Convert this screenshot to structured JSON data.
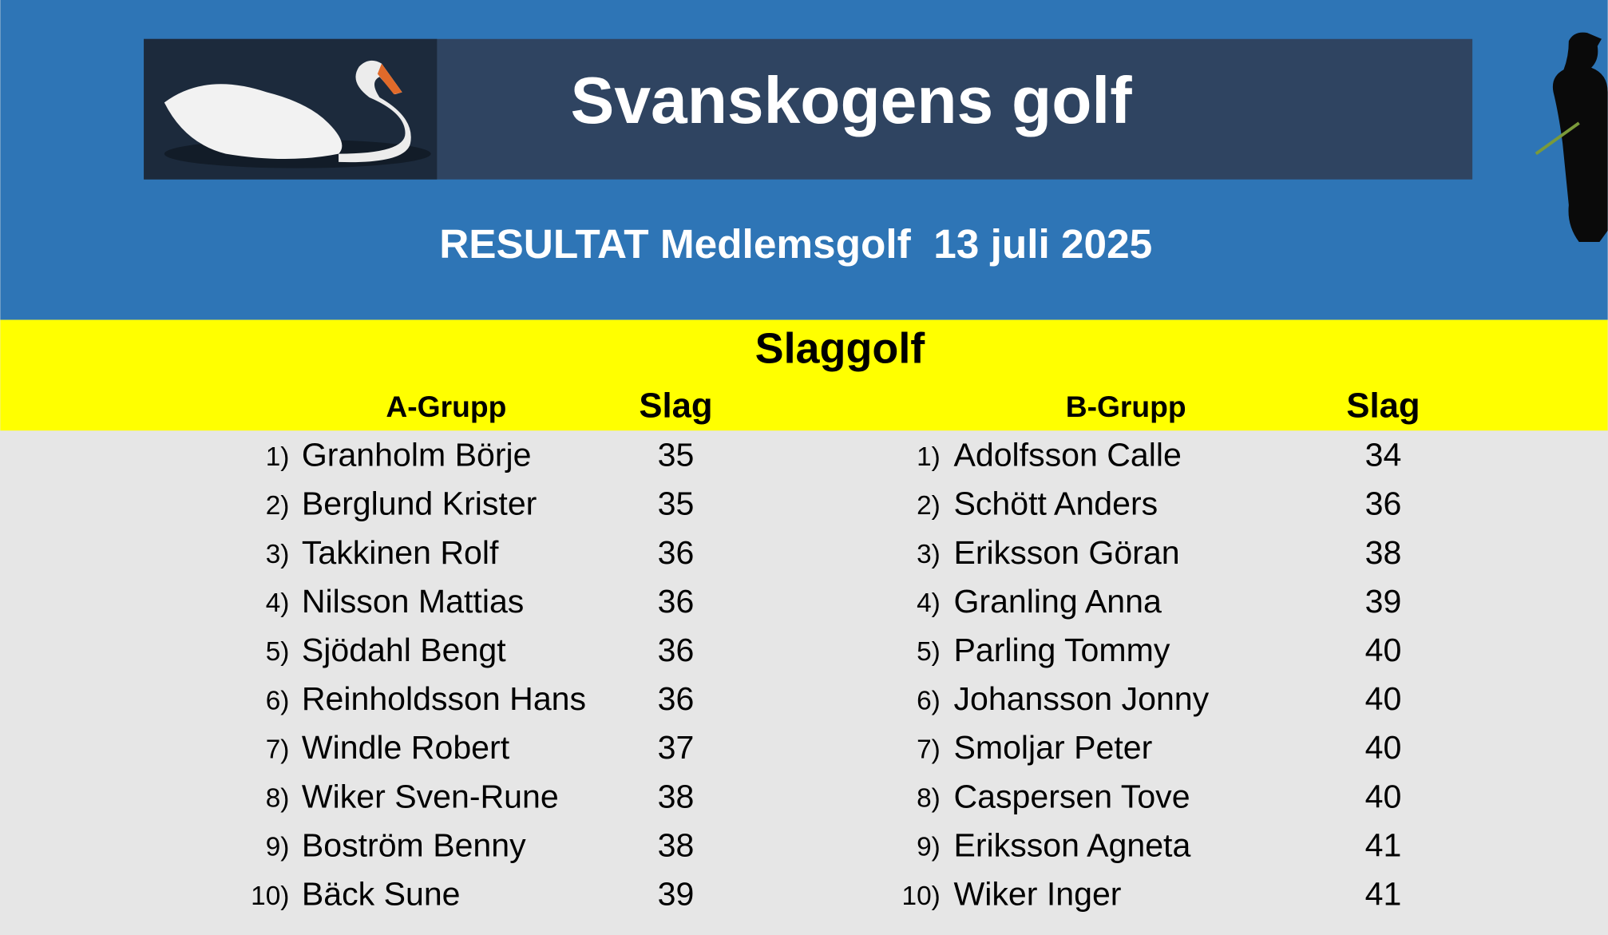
{
  "header": {
    "title": "Svanskogens golf",
    "subtitle": "RESULTAT Medlemsgolf  13 juli 2025"
  },
  "section": {
    "title": "Slaggolf"
  },
  "groups": [
    {
      "header": "A-Grupp",
      "score_header": "Slag",
      "rows": [
        {
          "rank": "1)",
          "name": "Granholm Börje",
          "score": 35
        },
        {
          "rank": "2)",
          "name": "Berglund Krister",
          "score": 35
        },
        {
          "rank": "3)",
          "name": "Takkinen Rolf",
          "score": 36
        },
        {
          "rank": "4)",
          "name": "Nilsson Mattias",
          "score": 36
        },
        {
          "rank": "5)",
          "name": "Sjödahl Bengt",
          "score": 36
        },
        {
          "rank": "6)",
          "name": "Reinholdsson Hans",
          "score": 36
        },
        {
          "rank": "7)",
          "name": "Windle Robert",
          "score": 37
        },
        {
          "rank": "8)",
          "name": "Wiker Sven-Rune",
          "score": 38
        },
        {
          "rank": "9)",
          "name": "Boström Benny",
          "score": 38
        },
        {
          "rank": "10)",
          "name": "Bäck Sune",
          "score": 39
        }
      ]
    },
    {
      "header": "B-Grupp",
      "score_header": "Slag",
      "rows": [
        {
          "rank": "1)",
          "name": "Adolfsson Calle",
          "score": 34
        },
        {
          "rank": "2)",
          "name": "Schött Anders",
          "score": 36
        },
        {
          "rank": "3)",
          "name": "Eriksson Göran",
          "score": 38
        },
        {
          "rank": "4)",
          "name": "Granling Anna",
          "score": 39
        },
        {
          "rank": "5)",
          "name": "Parling Tommy",
          "score": 40
        },
        {
          "rank": "6)",
          "name": "Johansson Jonny",
          "score": 40
        },
        {
          "rank": "7)",
          "name": "Smoljar Peter",
          "score": 40
        },
        {
          "rank": "8)",
          "name": "Caspersen Tove",
          "score": 40
        },
        {
          "rank": "9)",
          "name": "Eriksson Agneta",
          "score": 41
        },
        {
          "rank": "10)",
          "name": "Wiker Inger",
          "score": 41
        }
      ]
    }
  ]
}
